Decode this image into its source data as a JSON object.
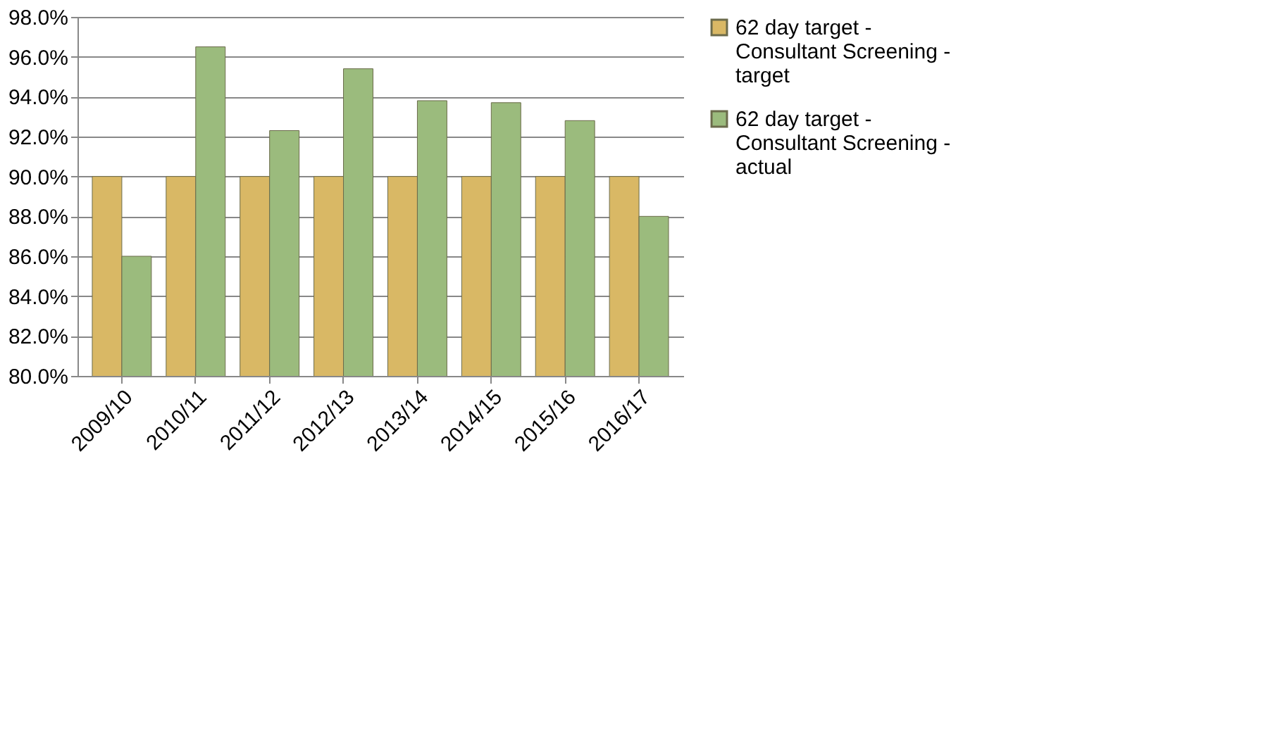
{
  "chart_data": {
    "type": "bar",
    "categories": [
      "2009/10",
      "2010/11",
      "2011/12",
      "2012/13",
      "2013/14",
      "2014/15",
      "2015/16",
      "2016/17"
    ],
    "series": [
      {
        "name": "62 day target - Consultant Screening - target",
        "color": "#d9b865",
        "values": [
          90,
          90,
          90,
          90,
          90,
          90,
          90,
          90
        ]
      },
      {
        "name": "62 day target - Consultant Screening - actual",
        "color": "#9bbb7d",
        "values": [
          86.0,
          96.5,
          92.3,
          95.4,
          93.8,
          93.7,
          92.8,
          88.0
        ]
      }
    ],
    "ylim": [
      80,
      98
    ],
    "yticks": [
      {
        "value": 80,
        "label": "80.0%"
      },
      {
        "value": 82,
        "label": "82.0%"
      },
      {
        "value": 84,
        "label": "84.0%"
      },
      {
        "value": 86,
        "label": "86.0%"
      },
      {
        "value": 88,
        "label": "88.0%"
      },
      {
        "value": 90,
        "label": "90.0%"
      },
      {
        "value": 92,
        "label": "92.0%"
      },
      {
        "value": 94,
        "label": "94.0%"
      },
      {
        "value": 96,
        "label": "96.0%"
      },
      {
        "value": 98,
        "label": "98.0%"
      }
    ],
    "grid": "y",
    "legend": "right"
  }
}
